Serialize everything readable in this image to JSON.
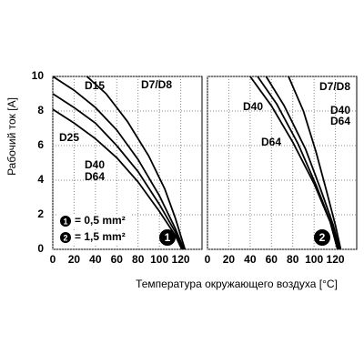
{
  "chart_data": [
    {
      "type": "line",
      "panel": "1",
      "xlabel": "Температура окружающего воздуха [°C]",
      "ylabel": "Рабочий ток [A]",
      "xlim": [
        0,
        140
      ],
      "ylim": [
        0,
        10
      ],
      "xticks": [
        0,
        20,
        40,
        60,
        80,
        100,
        120
      ],
      "yticks": [
        0,
        2,
        4,
        6,
        8,
        10
      ],
      "grid": true,
      "color": "#000000",
      "series": [
        {
          "labels": [
            "D15"
          ],
          "x": [
            0,
            20,
            40,
            60,
            80,
            100,
            115,
            123
          ],
          "values": [
            10,
            9.2,
            8.2,
            6.9,
            5.2,
            3.1,
            1.2,
            0
          ]
        },
        {
          "labels": [
            "D25"
          ],
          "x": [
            0,
            20,
            40,
            60,
            80,
            100,
            115,
            122
          ],
          "values": [
            9,
            8.2,
            7.3,
            6,
            4.5,
            2.6,
            1,
            0
          ]
        },
        {
          "labels": [
            "D40",
            "D64"
          ],
          "x": [
            0,
            20,
            40,
            60,
            80,
            100,
            115,
            121
          ],
          "values": [
            8.1,
            7.3,
            6.4,
            5.3,
            3.9,
            2.2,
            0.8,
            0
          ]
        },
        {
          "labels": [
            "D7/D8"
          ],
          "x": [
            32,
            50,
            70,
            90,
            105,
            115,
            124
          ],
          "values": [
            10,
            9,
            7.4,
            5.4,
            3.5,
            1.8,
            0
          ]
        }
      ],
      "legend": [
        "= 0,5 mm²",
        "= 1,5 mm²"
      ],
      "legend_markers": [
        "1",
        "2"
      ]
    },
    {
      "type": "line",
      "panel": "2",
      "xlim": [
        0,
        140
      ],
      "ylim": [
        0,
        10
      ],
      "xticks": [
        0,
        20,
        40,
        60,
        80,
        100,
        120
      ],
      "grid": true,
      "color": "#000000",
      "series": [
        {
          "labels": [
            "D40"
          ],
          "x": [
            40,
            60,
            80,
            100,
            115,
            122
          ],
          "values": [
            10,
            8.3,
            6.2,
            3.8,
            1.6,
            0
          ]
        },
        {
          "labels": [
            "D64"
          ],
          "x": [
            47,
            65,
            85,
            102,
            116,
            123
          ],
          "values": [
            10,
            8.4,
            6.1,
            3.7,
            1.5,
            0
          ]
        },
        {
          "labels": [
            "D40",
            "D64"
          ],
          "x": [
            55,
            72,
            92,
            106,
            118,
            124
          ],
          "values": [
            10,
            8.3,
            5.8,
            3.5,
            1.4,
            0
          ]
        },
        {
          "labels": [
            "D7/D8"
          ],
          "x": [
            76,
            90,
            102,
            112,
            120,
            125
          ],
          "values": [
            10,
            8,
            5.6,
            3.3,
            1.4,
            0
          ]
        }
      ]
    }
  ]
}
